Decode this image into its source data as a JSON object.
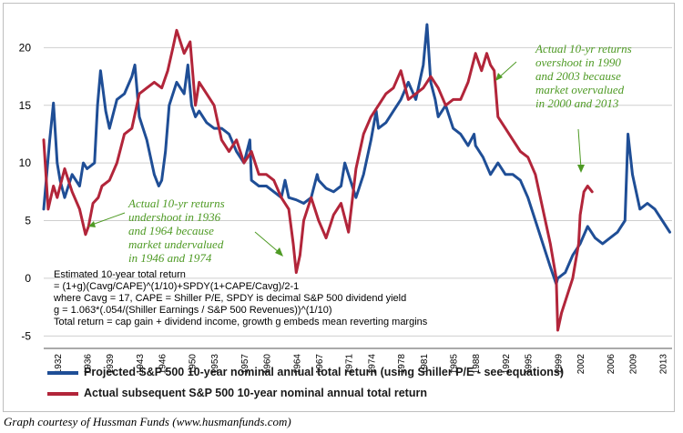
{
  "chart_data": {
    "type": "line",
    "x_ticks": [
      "1932",
      "1936",
      "1939",
      "1943",
      "1946",
      "1950",
      "1953",
      "1957",
      "1960",
      "1964",
      "1967",
      "1971",
      "1974",
      "1978",
      "1981",
      "1985",
      "1988",
      "1992",
      "1995",
      "1999",
      "2002",
      "2006",
      "2009",
      "2013"
    ],
    "y_ticks": [
      "20",
      "15",
      "10",
      "5",
      "0",
      "-5"
    ],
    "ylim": [
      -6,
      22
    ],
    "xlim": [
      1930.2,
      2014.3
    ],
    "grid": true,
    "legend_position": "bottom",
    "series": [
      {
        "name": "Projected S&P 500 10-year nominal annual total return (using Shiller P/E - see equations)",
        "color": "#1f4e96",
        "x": [
          1930.2,
          1931,
          1931.5,
          1932,
          1932.4,
          1933,
          1934,
          1935,
          1935.5,
          1936,
          1937,
          1937.4,
          1937.8,
          1938.5,
          1939,
          1940,
          1941,
          1942,
          1942.4,
          1943,
          1944,
          1945,
          1945.6,
          1946,
          1946.5,
          1947,
          1948,
          1949,
          1949.5,
          1950,
          1950.5,
          1951,
          1952,
          1953,
          1954,
          1955,
          1956,
          1957,
          1957.8,
          1958,
          1959,
          1960,
          1961,
          1962,
          1962.5,
          1963,
          1964,
          1965,
          1966,
          1966.8,
          1967,
          1968,
          1969,
          1970,
          1970.5,
          1971,
          1972,
          1973,
          1974,
          1974.7,
          1975,
          1976,
          1977,
          1978,
          1979,
          1980,
          1981,
          1981.5,
          1982,
          1982.6,
          1983,
          1984,
          1985,
          1986,
          1987,
          1987.8,
          1988,
          1989,
          1990,
          1991,
          1992,
          1993,
          1994,
          1995,
          1996,
          1997,
          1998,
          1998.8,
          1999,
          2000,
          2001,
          2002,
          2003,
          2004,
          2005,
          2006,
          2007,
          2008,
          2008.4,
          2009,
          2010,
          2011,
          2012,
          2013,
          2014
        ],
        "y": [
          6.0,
          12.0,
          15.2,
          10.0,
          8.5,
          7.0,
          9.0,
          8.0,
          10.0,
          9.5,
          10.0,
          15.0,
          18.0,
          14.5,
          13.0,
          15.5,
          16.0,
          17.5,
          18.5,
          14.0,
          12.0,
          9.0,
          8.0,
          8.5,
          11.0,
          15.0,
          17.0,
          16.0,
          18.5,
          15.0,
          14.0,
          14.5,
          13.5,
          13.0,
          13.0,
          12.5,
          11.0,
          10.0,
          12.0,
          8.5,
          8.0,
          8.0,
          7.5,
          7.0,
          8.5,
          7.0,
          6.8,
          6.5,
          7.0,
          9.0,
          8.5,
          7.8,
          7.5,
          8.0,
          10.0,
          9.0,
          7.0,
          9.0,
          12.0,
          14.5,
          13.0,
          13.5,
          14.5,
          15.5,
          17.0,
          15.5,
          18.5,
          22.0,
          17.0,
          15.5,
          14.0,
          15.0,
          13.0,
          12.5,
          11.5,
          12.5,
          11.5,
          10.5,
          9.0,
          10.0,
          9.0,
          9.0,
          8.5,
          7.0,
          5.0,
          3.0,
          1.0,
          -0.5,
          0.0,
          0.5,
          2.0,
          3.0,
          4.5,
          3.5,
          3.0,
          3.5,
          4.0,
          5.0,
          12.5,
          9.0,
          6.0,
          6.5,
          6.0,
          5.0,
          4.0
        ]
      },
      {
        "name": "Actual subsequent S&P 500 10-year nominal annual total return",
        "color": "#b2253a",
        "x": [
          1930.2,
          1930.8,
          1931.5,
          1932,
          1933,
          1934,
          1935,
          1935.8,
          1936.2,
          1936.8,
          1937.5,
          1938,
          1939,
          1940,
          1941,
          1942,
          1943,
          1944,
          1945,
          1946,
          1946.8,
          1947.5,
          1948,
          1949,
          1949.8,
          1950.5,
          1951,
          1952,
          1953,
          1954,
          1955,
          1956,
          1957,
          1958,
          1959,
          1960,
          1961,
          1962,
          1963,
          1963.6,
          1964,
          1964.5,
          1965,
          1966,
          1967,
          1968,
          1969,
          1970,
          1971,
          1972,
          1973,
          1974,
          1975,
          1976,
          1977,
          1978,
          1979,
          1980,
          1981,
          1982,
          1983,
          1984,
          1985,
          1986,
          1987,
          1988,
          1988.8,
          1989.5,
          1990,
          1990.5,
          1991,
          1992,
          1993,
          1994,
          1995,
          1996,
          1997,
          1998,
          1998.8,
          1999,
          1999.5,
          2000,
          2001,
          2001.8,
          2002,
          2002.5,
          2003,
          2003.6
        ],
        "y": [
          12.0,
          6.0,
          8.0,
          7.0,
          9.5,
          7.5,
          6.0,
          3.8,
          4.5,
          6.5,
          7.0,
          8.0,
          8.5,
          10.0,
          12.5,
          13.0,
          16.0,
          16.5,
          17.0,
          16.5,
          18.0,
          20.0,
          21.5,
          19.5,
          20.5,
          15.0,
          17.0,
          16.0,
          15.0,
          12.0,
          11.0,
          12.0,
          10.0,
          11.0,
          9.0,
          9.0,
          8.5,
          7.0,
          6.0,
          3.0,
          0.5,
          2.0,
          5.0,
          7.0,
          5.0,
          3.5,
          5.5,
          6.5,
          4.0,
          9.5,
          12.5,
          14.0,
          15.0,
          16.0,
          16.5,
          18.0,
          15.5,
          16.0,
          16.5,
          17.5,
          16.5,
          15.0,
          15.5,
          15.5,
          17.0,
          19.5,
          18.0,
          19.5,
          18.5,
          18.0,
          14.0,
          13.0,
          12.0,
          11.0,
          10.5,
          9.0,
          6.0,
          3.0,
          0.0,
          -4.5,
          -3.0,
          -2.0,
          0.0,
          3.0,
          5.5,
          7.5,
          8.0,
          7.5
        ]
      }
    ]
  },
  "annotations": {
    "right": [
      "Actual 10-yr returns",
      "overshoot in 1990",
      "and 2003 because",
      "market overvalued",
      "in 2000 and 2013"
    ],
    "left": [
      "Actual 10-yr returns",
      "undershoot in 1936",
      "and 1964 because",
      "market undervalued",
      "in 1946 and 1974"
    ]
  },
  "equations": [
    "Estimated 10-year total return",
    "= (1+g)(Cavg/CAPE)^(1/10)+SPDY(1+CAPE/Cavg)/2-1",
    "where Cavg = 17, CAPE = Shiller P/E, SPDY is decimal S&P 500 dividend yield",
    "g = 1.063*(.054/(Shiller Earnings / S&P 500 Revenues))^(1/10)",
    "Total return = cap gain + dividend income, growth g embeds mean reverting margins"
  ],
  "credit": "Graph courtesy of Hussman Funds  (www.husmanfunds.com)"
}
